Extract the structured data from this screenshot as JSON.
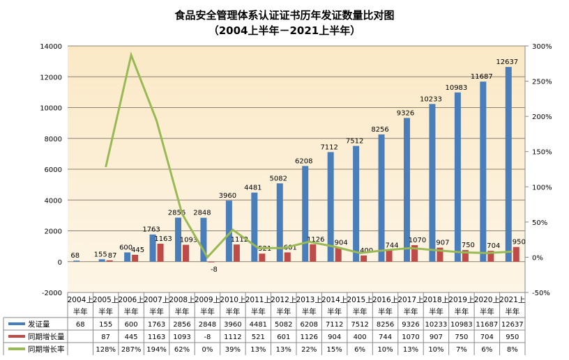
{
  "chart_data": {
    "type": "bar",
    "title": "食品安全管理体系认证证书历年发证数量比对图",
    "subtitle": "（2004上半年－2021上半年）",
    "categories": [
      "2004上半年",
      "2005上半年",
      "2006上半年",
      "2007上半年",
      "2008上半年",
      "2009上半年",
      "2010上半年",
      "2011上半年",
      "2012上半年",
      "2013上半年",
      "2014上半年",
      "2015上半年",
      "2016上半年",
      "2017上半年",
      "2018上半年",
      "2019上半年",
      "2020上半年",
      "2021上半年"
    ],
    "cat_line1": [
      "2004上",
      "2005上",
      "2006上",
      "2007上",
      "2008上",
      "2009上",
      "2010上",
      "2011上",
      "2012上",
      "2013上",
      "2014上",
      "2015上",
      "2016上",
      "2017上",
      "2018上",
      "2019上",
      "2020上",
      "2021上"
    ],
    "cat_line2": "半年",
    "series": [
      {
        "name": "发证量",
        "type": "bar",
        "axis": "left",
        "color": "#4a7ebb",
        "values": [
          68,
          155,
          600,
          1763,
          2856,
          2848,
          3960,
          4481,
          5082,
          6208,
          7112,
          7512,
          8256,
          9326,
          10233,
          10983,
          11687,
          12637
        ]
      },
      {
        "name": "同期增长量",
        "type": "bar",
        "axis": "left",
        "color": "#be4b48",
        "values": [
          null,
          87,
          445,
          1163,
          1093,
          -8,
          1112,
          521,
          601,
          1126,
          904,
          400,
          744,
          1070,
          907,
          750,
          704,
          950
        ]
      },
      {
        "name": "同期增长率",
        "type": "line",
        "axis": "right",
        "color": "#98b954",
        "values": [
          null,
          128,
          287,
          194,
          62,
          0,
          39,
          13,
          13,
          22,
          15,
          6,
          10,
          13,
          10,
          7,
          6,
          8
        ],
        "labels": [
          "",
          "128%",
          "287%",
          "194%",
          "62%",
          "0%",
          "39%",
          "13%",
          "13%",
          "22%",
          "15%",
          "6%",
          "10%",
          "13%",
          "10%",
          "7%",
          "6%",
          "8%"
        ]
      }
    ],
    "ylim": [
      -2000,
      14000
    ],
    "yticks": [
      "14000",
      "12000",
      "10000",
      "8000",
      "6000",
      "4000",
      "2000",
      "0",
      "-2000"
    ],
    "y2lim": [
      -50,
      300
    ],
    "y2ticks": [
      "300%",
      "250%",
      "200%",
      "150%",
      "100%",
      "50%",
      "0%",
      "-50%"
    ],
    "grid": true,
    "legend": "data-table"
  }
}
